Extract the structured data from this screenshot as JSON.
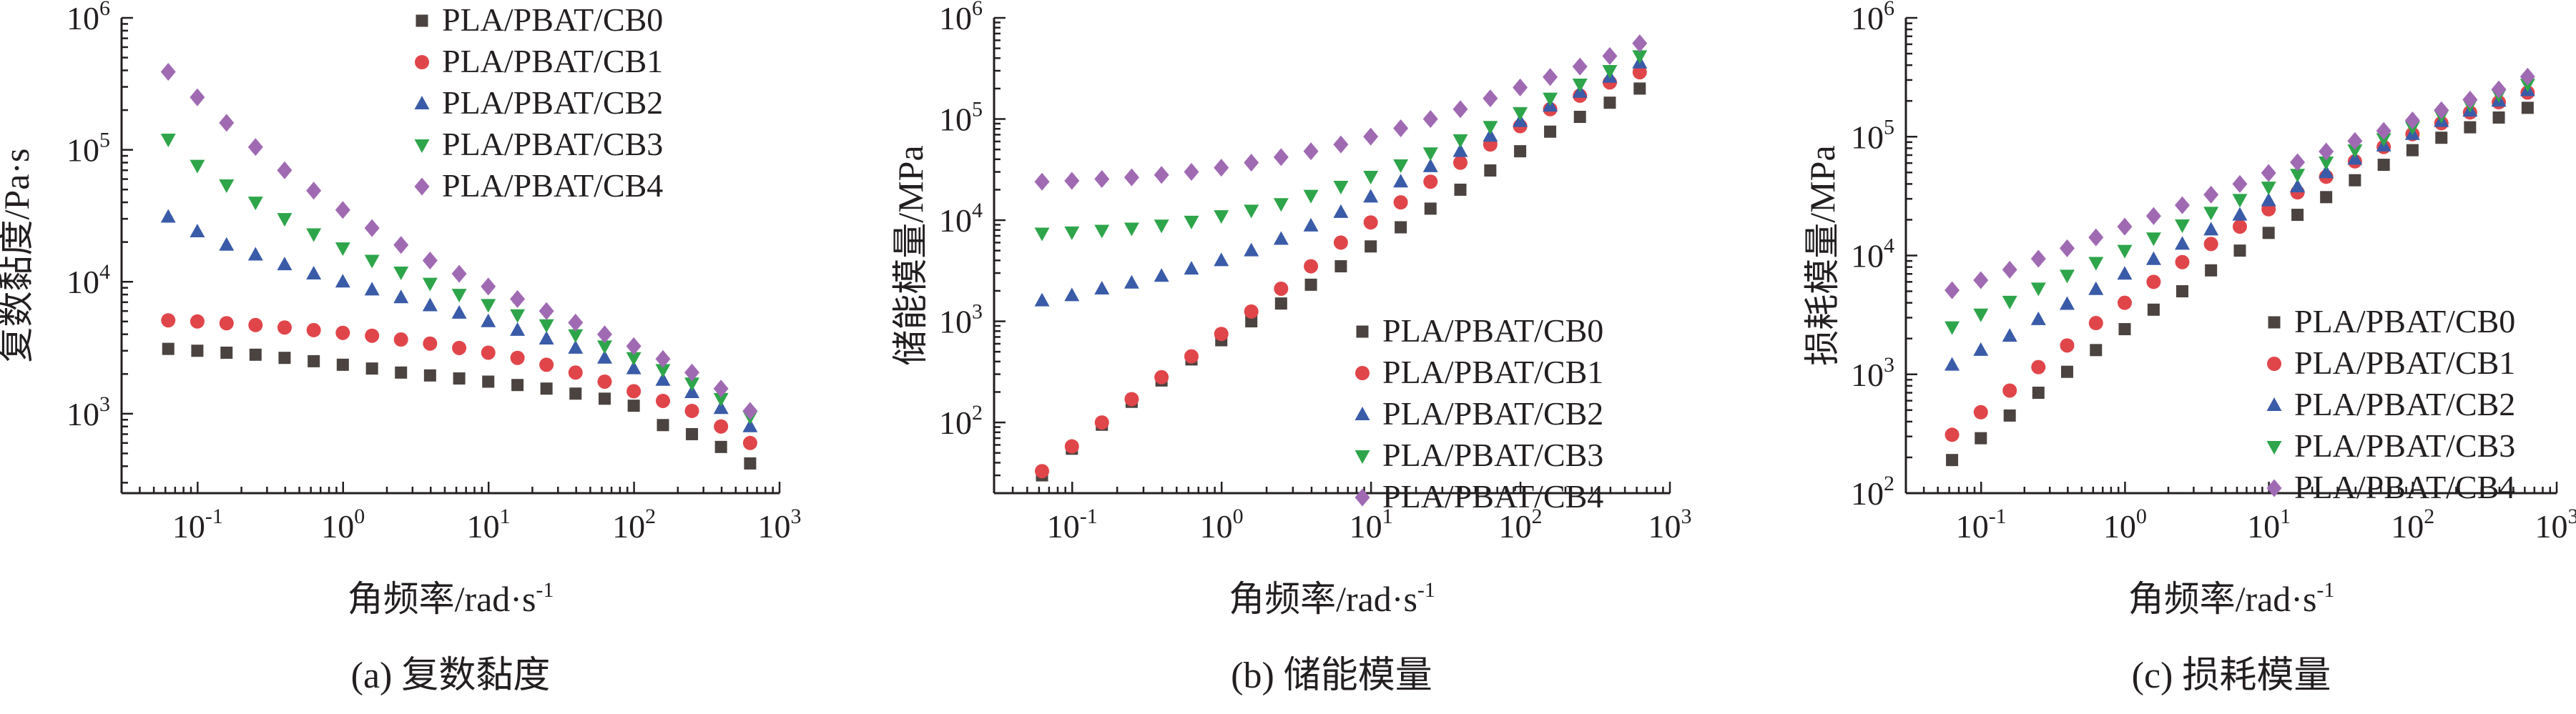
{
  "colors": {
    "PLA/PBAT/CB0": "#4a4340",
    "PLA/PBAT/CB1": "#e0454a",
    "PLA/PBAT/CB2": "#3a5ba8",
    "PLA/PBAT/CB3": "#2ea54a",
    "PLA/PBAT/CB4": "#a06ab3",
    "axis": "#231f20"
  },
  "chart_data": [
    {
      "type": "scatter",
      "caption": "(a) 复数黏度",
      "xlabel": "角频率/rad·s",
      "xlabel_sup": "-1",
      "ylabel": "复数黏度/Pa·s",
      "xscale": "log",
      "yscale": "log",
      "xlim": [
        0.03,
        1000
      ],
      "ylim": [
        250,
        1000000
      ],
      "xticks": [
        {
          "base": "10",
          "exp": "-1"
        },
        {
          "base": "10",
          "exp": "0"
        },
        {
          "base": "10",
          "exp": "1"
        },
        {
          "base": "10",
          "exp": "2"
        },
        {
          "base": "10",
          "exp": "3"
        }
      ],
      "yticks": [
        {
          "base": "10",
          "exp": "3"
        },
        {
          "base": "10",
          "exp": "4"
        },
        {
          "base": "10",
          "exp": "5"
        },
        {
          "base": "10",
          "exp": "6"
        }
      ],
      "legend_position": "top-right",
      "x": [
        0.0628,
        0.0995,
        0.158,
        0.25,
        0.396,
        0.628,
        0.995,
        1.58,
        2.5,
        3.96,
        6.28,
        9.95,
        15.8,
        25,
        39.6,
        62.8,
        99.5,
        158,
        250,
        396,
        628
      ],
      "series": [
        {
          "name": "PLA/PBAT/CB0",
          "marker": "square",
          "values": [
            3100,
            3000,
            2900,
            2800,
            2650,
            2500,
            2350,
            2200,
            2050,
            1950,
            1850,
            1750,
            1650,
            1550,
            1420,
            1300,
            1150,
            820,
            700,
            560,
            420
          ]
        },
        {
          "name": "PLA/PBAT/CB1",
          "marker": "circle",
          "values": [
            5100,
            5000,
            4850,
            4700,
            4500,
            4300,
            4100,
            3900,
            3650,
            3400,
            3150,
            2900,
            2650,
            2350,
            2050,
            1750,
            1480,
            1250,
            1050,
            800,
            600
          ]
        },
        {
          "name": "PLA/PBAT/CB2",
          "marker": "triangle-up",
          "values": [
            31000,
            24000,
            19000,
            16000,
            13500,
            11500,
            10000,
            8700,
            7600,
            6600,
            5800,
            5000,
            4300,
            3700,
            3150,
            2650,
            2200,
            1800,
            1450,
            1100,
            800
          ]
        },
        {
          "name": "PLA/PBAT/CB3",
          "marker": "triangle-down",
          "values": [
            120000,
            76000,
            54000,
            40000,
            30000,
            23000,
            18000,
            14500,
            11800,
            9700,
            8000,
            6700,
            5600,
            4700,
            3950,
            3250,
            2650,
            2150,
            1700,
            1300,
            950
          ]
        },
        {
          "name": "PLA/PBAT/CB4",
          "marker": "diamond",
          "values": [
            390000,
            250000,
            160000,
            105000,
            70000,
            49000,
            35000,
            25500,
            19000,
            14500,
            11500,
            9200,
            7400,
            6000,
            4900,
            4000,
            3250,
            2600,
            2050,
            1550,
            1050
          ]
        }
      ]
    },
    {
      "type": "scatter",
      "caption": "(b) 储能模量",
      "xlabel": "角频率/rad·s",
      "xlabel_sup": "-1",
      "ylabel": "储能模量/MPa",
      "xscale": "log",
      "yscale": "log",
      "xlim": [
        0.03,
        1000
      ],
      "ylim": [
        20,
        1000000
      ],
      "xticks": [
        {
          "base": "10",
          "exp": "-1"
        },
        {
          "base": "10",
          "exp": "0"
        },
        {
          "base": "10",
          "exp": "1"
        },
        {
          "base": "10",
          "exp": "2"
        },
        {
          "base": "10",
          "exp": "3"
        }
      ],
      "yticks": [
        {
          "base": "10",
          "exp": "2"
        },
        {
          "base": "10",
          "exp": "3"
        },
        {
          "base": "10",
          "exp": "4"
        },
        {
          "base": "10",
          "exp": "5"
        },
        {
          "base": "10",
          "exp": "6"
        }
      ],
      "legend_position": "bottom-right",
      "x": [
        0.0628,
        0.0995,
        0.158,
        0.25,
        0.396,
        0.628,
        0.995,
        1.58,
        2.5,
        3.96,
        6.28,
        9.95,
        15.8,
        25,
        39.6,
        62.8,
        99.5,
        158,
        250,
        396,
        628
      ],
      "series": [
        {
          "name": "PLA/PBAT/CB0",
          "marker": "square",
          "values": [
            30,
            55,
            95,
            160,
            260,
            420,
            650,
            1000,
            1500,
            2300,
            3500,
            5500,
            8500,
            13000,
            20000,
            31000,
            48000,
            75000,
            105000,
            145000,
            200000
          ]
        },
        {
          "name": "PLA/PBAT/CB1",
          "marker": "circle",
          "values": [
            33,
            58,
            100,
            170,
            280,
            450,
            750,
            1250,
            2100,
            3500,
            6000,
            9500,
            15000,
            24000,
            37000,
            56000,
            85000,
            125000,
            170000,
            230000,
            290000
          ]
        },
        {
          "name": "PLA/PBAT/CB2",
          "marker": "triangle-up",
          "values": [
            1600,
            1800,
            2100,
            2400,
            2800,
            3300,
            4000,
            5000,
            6500,
            8800,
            12000,
            17000,
            24000,
            34000,
            48000,
            68000,
            95000,
            135000,
            185000,
            260000,
            360000
          ]
        },
        {
          "name": "PLA/PBAT/CB3",
          "marker": "triangle-down",
          "values": [
            7400,
            7600,
            7900,
            8300,
            8900,
            9700,
            11000,
            12500,
            14500,
            17500,
            21500,
            27000,
            35000,
            46000,
            62000,
            84000,
            115000,
            160000,
            220000,
            300000,
            420000
          ]
        },
        {
          "name": "PLA/PBAT/CB4",
          "marker": "diamond",
          "values": [
            24000,
            24500,
            25500,
            26500,
            28000,
            30000,
            33000,
            37000,
            42000,
            48000,
            56000,
            67000,
            81000,
            100000,
            125000,
            160000,
            205000,
            260000,
            330000,
            420000,
            560000
          ]
        }
      ]
    },
    {
      "type": "scatter",
      "caption": "(c) 损耗模量",
      "xlabel": "角频率/rad·s",
      "xlabel_sup": "-1",
      "ylabel": "损耗模量/MPa",
      "xscale": "log",
      "yscale": "log",
      "xlim": [
        0.03,
        1000
      ],
      "ylim": [
        100,
        1000000
      ],
      "xticks": [
        {
          "base": "10",
          "exp": "-1"
        },
        {
          "base": "10",
          "exp": "0"
        },
        {
          "base": "10",
          "exp": "1"
        },
        {
          "base": "10",
          "exp": "2"
        },
        {
          "base": "10",
          "exp": "3"
        }
      ],
      "yticks": [
        {
          "base": "10",
          "exp": "2"
        },
        {
          "base": "10",
          "exp": "3"
        },
        {
          "base": "10",
          "exp": "4"
        },
        {
          "base": "10",
          "exp": "5"
        },
        {
          "base": "10",
          "exp": "6"
        }
      ],
      "legend_position": "bottom-right",
      "x": [
        0.0628,
        0.0995,
        0.158,
        0.25,
        0.396,
        0.628,
        0.995,
        1.58,
        2.5,
        3.96,
        6.28,
        9.95,
        15.8,
        25,
        39.6,
        62.8,
        99.5,
        158,
        250,
        396,
        628
      ],
      "series": [
        {
          "name": "PLA/PBAT/CB0",
          "marker": "square",
          "values": [
            190,
            290,
            450,
            700,
            1050,
            1600,
            2400,
            3500,
            5000,
            7500,
            11000,
            15500,
            22000,
            31000,
            43000,
            58000,
            77000,
            98000,
            120000,
            145000,
            175000
          ]
        },
        {
          "name": "PLA/PBAT/CB1",
          "marker": "circle",
          "values": [
            310,
            480,
            730,
            1150,
            1750,
            2700,
            4000,
            6000,
            8800,
            12500,
            17500,
            24500,
            34000,
            46000,
            62000,
            82000,
            105000,
            130000,
            160000,
            195000,
            235000
          ]
        },
        {
          "name": "PLA/PBAT/CB2",
          "marker": "triangle-up",
          "values": [
            1200,
            1600,
            2100,
            2900,
            3900,
            5200,
            7000,
            9300,
            12500,
            16500,
            22000,
            29000,
            38000,
            50000,
            65000,
            84000,
            105000,
            135000,
            165000,
            200000,
            245000
          ]
        },
        {
          "name": "PLA/PBAT/CB3",
          "marker": "triangle-down",
          "values": [
            2500,
            3200,
            4100,
            5300,
            6800,
            8700,
            11000,
            14000,
            18000,
            23000,
            29500,
            37500,
            48000,
            61000,
            77000,
            96000,
            120000,
            150000,
            185000,
            225000,
            275000
          ]
        },
        {
          "name": "PLA/PBAT/CB4",
          "marker": "diamond",
          "values": [
            5100,
            6200,
            7600,
            9400,
            11500,
            14200,
            17500,
            21500,
            26500,
            32500,
            40000,
            49500,
            61000,
            75000,
            92000,
            112000,
            137000,
            167000,
            205000,
            250000,
            320000
          ]
        }
      ]
    }
  ]
}
